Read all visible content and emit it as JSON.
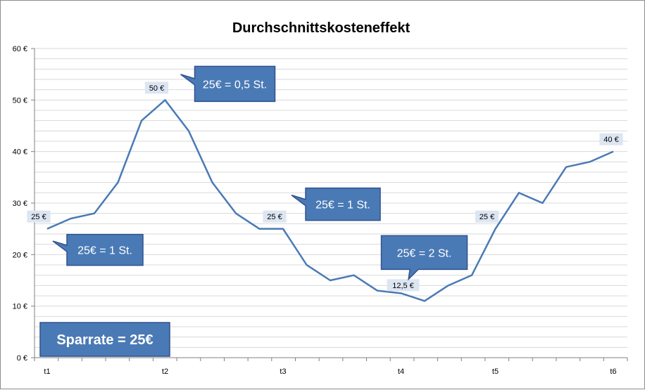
{
  "chart_data": {
    "type": "line",
    "title": "Durchschnittskosteneffekt",
    "xlabel": "",
    "ylabel": "",
    "ylim": [
      0,
      60
    ],
    "y_major_ticks": [
      0,
      10,
      20,
      30,
      40,
      50,
      60
    ],
    "y_tick_labels": [
      "0 €",
      "10 €",
      "20 €",
      "30 €",
      "40 €",
      "50 €",
      "60 €"
    ],
    "y_minor_step": 2,
    "grid": true,
    "categories": [
      "t1",
      "",
      "",
      "",
      "",
      "t2",
      "",
      "",
      "",
      "",
      "t3",
      "",
      "",
      "",
      "",
      "t4",
      "",
      "",
      "",
      "t5",
      "",
      "",
      "",
      "",
      "t6"
    ],
    "series": [
      {
        "color": "#4a7ab5",
        "values": [
          25,
          27,
          28,
          34,
          46,
          50,
          44,
          34,
          28,
          25,
          25,
          18,
          15,
          16,
          13,
          12.5,
          11,
          14,
          16,
          25,
          32,
          30,
          37,
          38,
          40
        ]
      }
    ],
    "data_labels": [
      {
        "index": 0,
        "text": "25 €"
      },
      {
        "index": 5,
        "text": "50 €"
      },
      {
        "index": 10,
        "text": "25 €"
      },
      {
        "index": 15,
        "text": "12,5 €"
      },
      {
        "index": 19,
        "text": "25 €"
      },
      {
        "index": 24,
        "text": "40 €"
      }
    ],
    "annotations": [
      {
        "anchor_index": 0,
        "text": "25€ = 1 St."
      },
      {
        "anchor_index": 5,
        "text": "25€ = 0,5 St."
      },
      {
        "anchor_index": 10,
        "text": "25€ = 1 St."
      },
      {
        "anchor_index": 15,
        "text": "25€ = 2 St."
      }
    ],
    "info_box": "Sparrate = 25€",
    "colors": {
      "line": "#4a7ab5",
      "callout_fill": "#4a7ab5",
      "callout_border": "#2f528f",
      "label_bg": "#dce6f2",
      "grid": "#d9d9d9",
      "axis": "#808080"
    }
  }
}
